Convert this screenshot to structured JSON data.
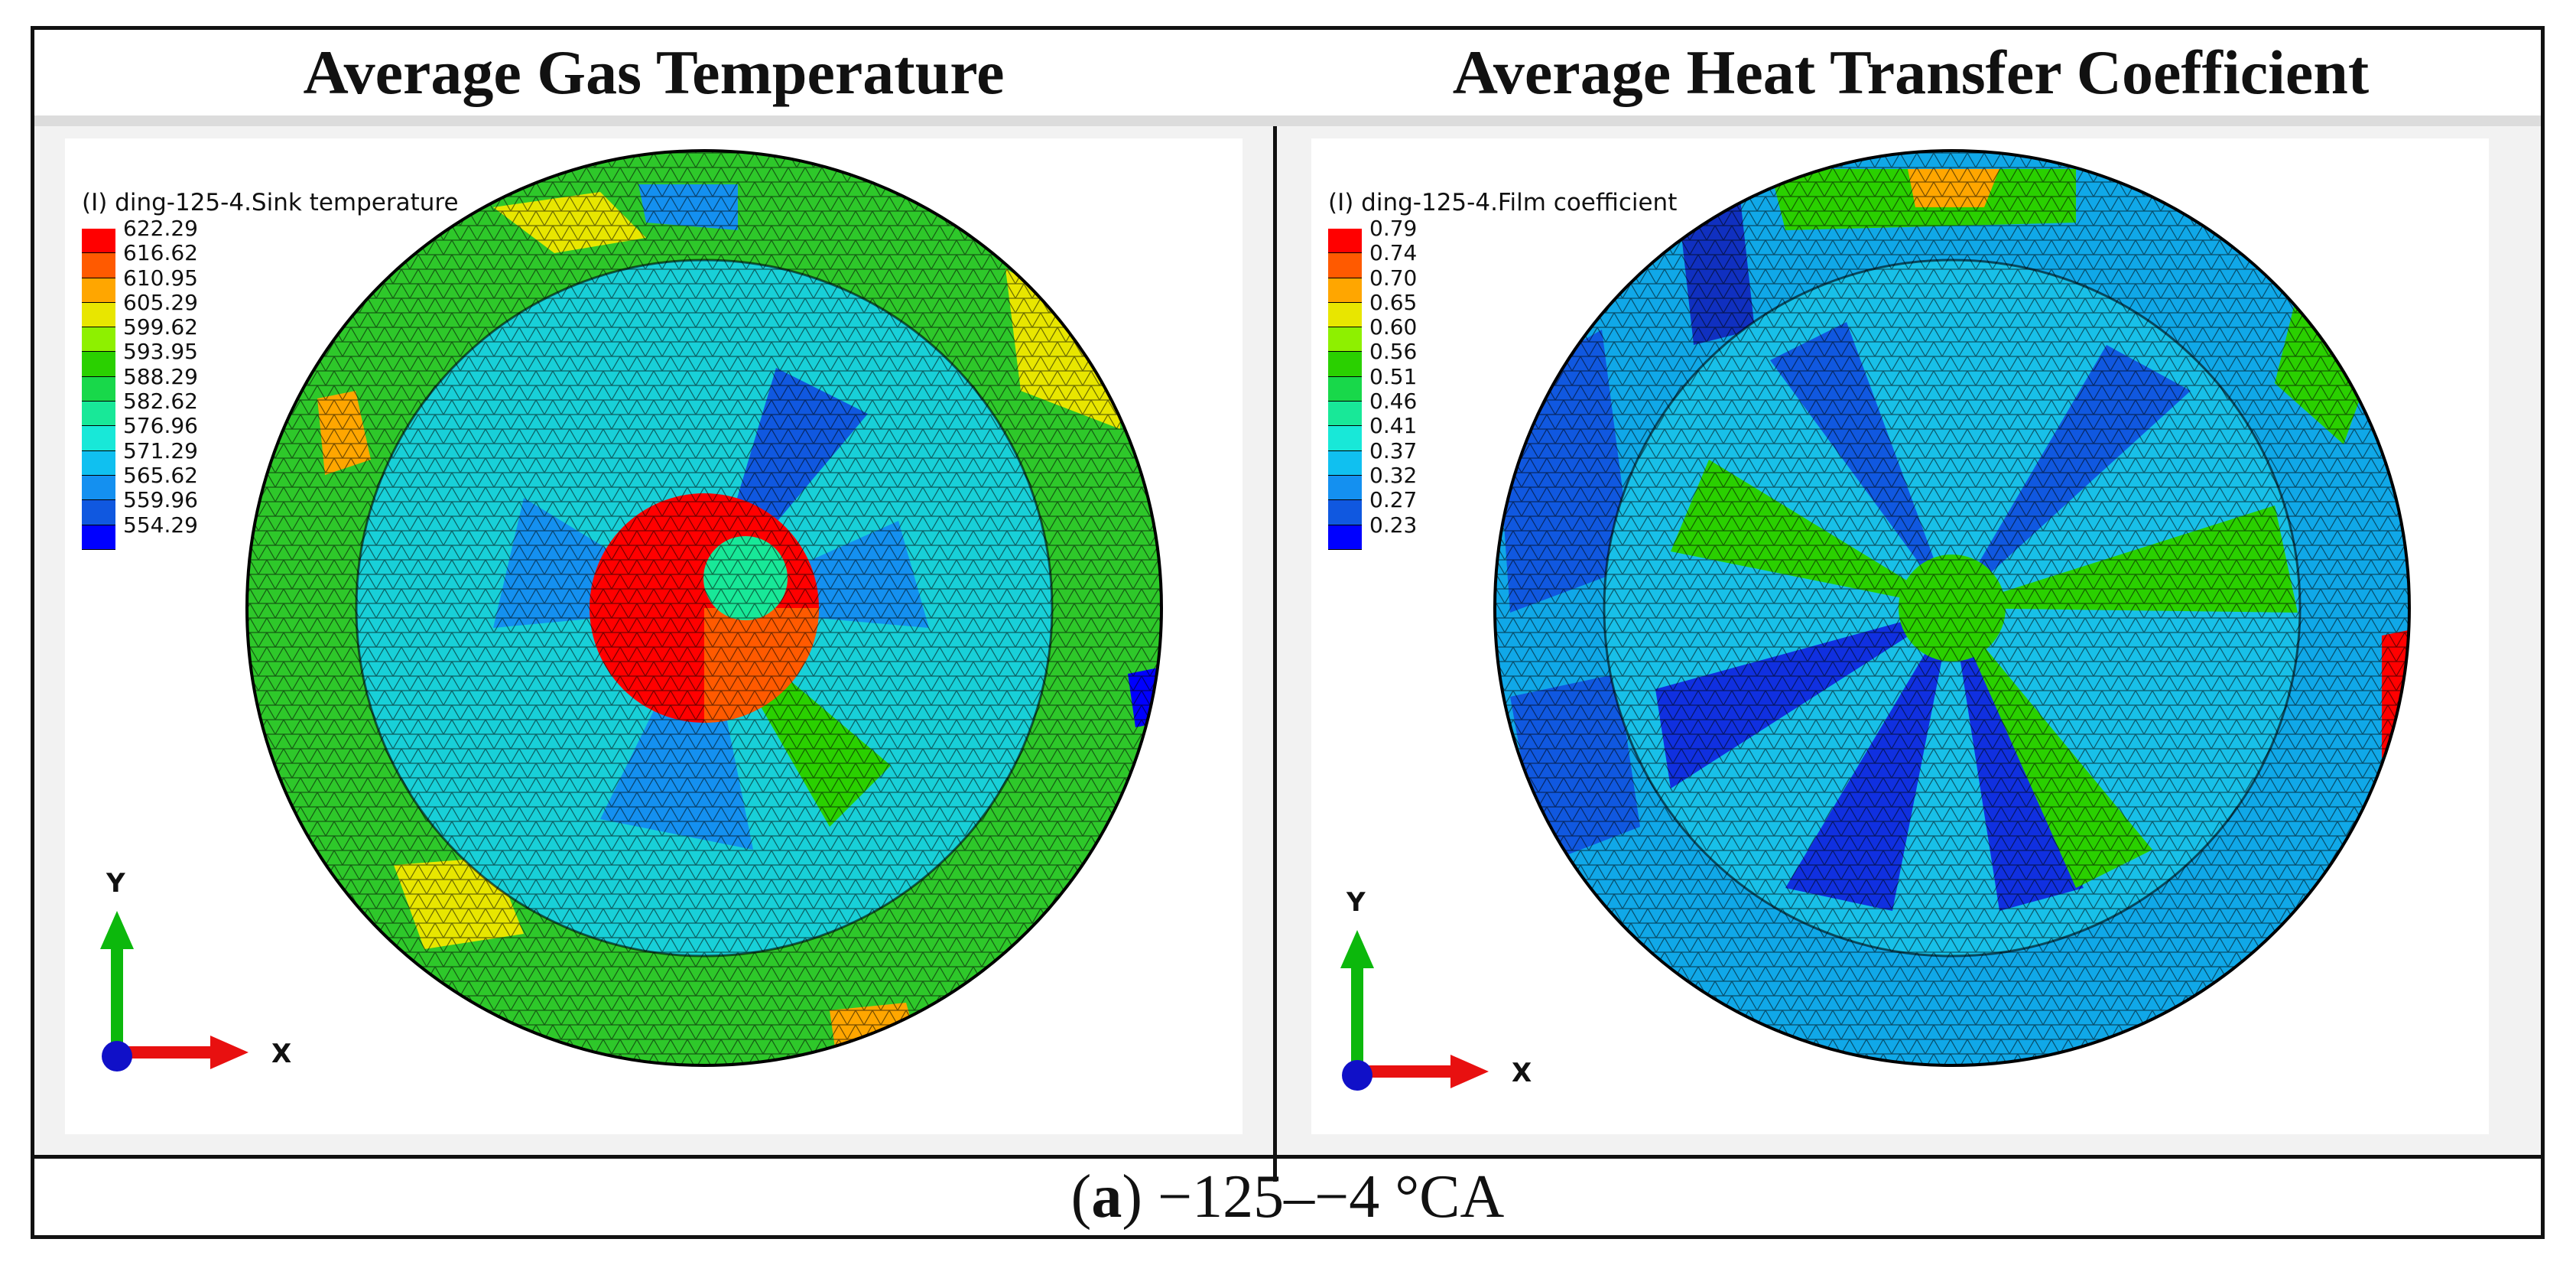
{
  "headers": {
    "left": "Average Gas Temperature",
    "right": "Average Heat Transfer Coefficient"
  },
  "caption": {
    "label": "(a)",
    "label_letter": "a",
    "text": "−125–−4 °CA"
  },
  "panels": [
    {
      "legend_title": "(I) ding-125-4.Sink temperature",
      "values": [
        "622.29",
        "616.62",
        "610.95",
        "605.29",
        "599.62",
        "593.95",
        "588.29",
        "582.62",
        "576.96",
        "571.29",
        "565.62",
        "559.96",
        "554.29"
      ],
      "axis_y": "Y",
      "axis_x": "X"
    },
    {
      "legend_title": "(I) ding-125-4.Film coefficient",
      "values": [
        "0.79",
        "0.74",
        "0.70",
        "0.65",
        "0.60",
        "0.56",
        "0.51",
        "0.46",
        "0.41",
        "0.37",
        "0.32",
        "0.27",
        "0.23"
      ],
      "axis_y": "Y",
      "axis_x": "X"
    }
  ],
  "colors": {
    "legend": [
      "#ff0000",
      "#ff5a00",
      "#ffa600",
      "#e8e600",
      "#8ef000",
      "#2ad000",
      "#18d84a",
      "#18e898",
      "#18e8d8",
      "#10c0f0",
      "#1490f0",
      "#1058e0",
      "#0000ff"
    ]
  }
}
